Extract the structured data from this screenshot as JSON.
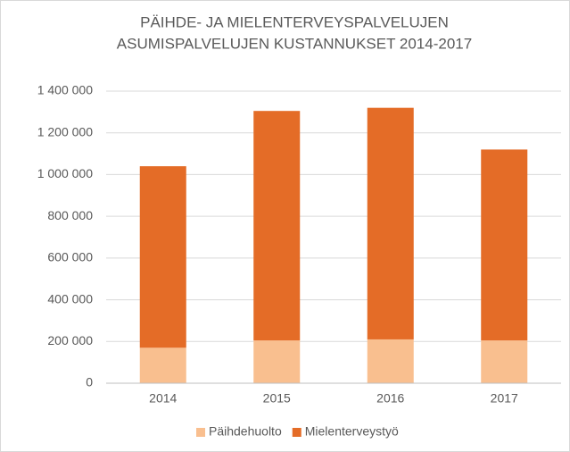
{
  "chart_data": {
    "type": "stacked_bar",
    "title": [
      "PÄIHDE- JA MIELENTERVEYSPALVELUJEN",
      "ASUMISPALVELUJEN KUSTANNUKSET 2014-2017"
    ],
    "categories": [
      "2014",
      "2015",
      "2016",
      "2017"
    ],
    "series": [
      {
        "name": "Päihdehuolto",
        "color": "#f9bf8f",
        "values": [
          170000,
          205000,
          210000,
          205000
        ]
      },
      {
        "name": "Mielenterveystyö",
        "color": "#e46c27",
        "values": [
          870000,
          1100000,
          1110000,
          915000
        ]
      }
    ],
    "ylim": [
      0,
      1400000
    ],
    "yticks": [
      0,
      {
        "value": 200000,
        "label": "200 000"
      },
      {
        "value": 400000,
        "label": "400 000"
      },
      {
        "value": 600000,
        "label": "600 000"
      },
      {
        "value": 800000,
        "label": "800 000"
      },
      {
        "value": 1000000,
        "label": "1 000 000"
      },
      {
        "value": 1200000,
        "label": "1 200 000"
      },
      {
        "value": 1400000,
        "label": "1 400 000"
      }
    ],
    "grid": true,
    "legend": "bottom"
  }
}
